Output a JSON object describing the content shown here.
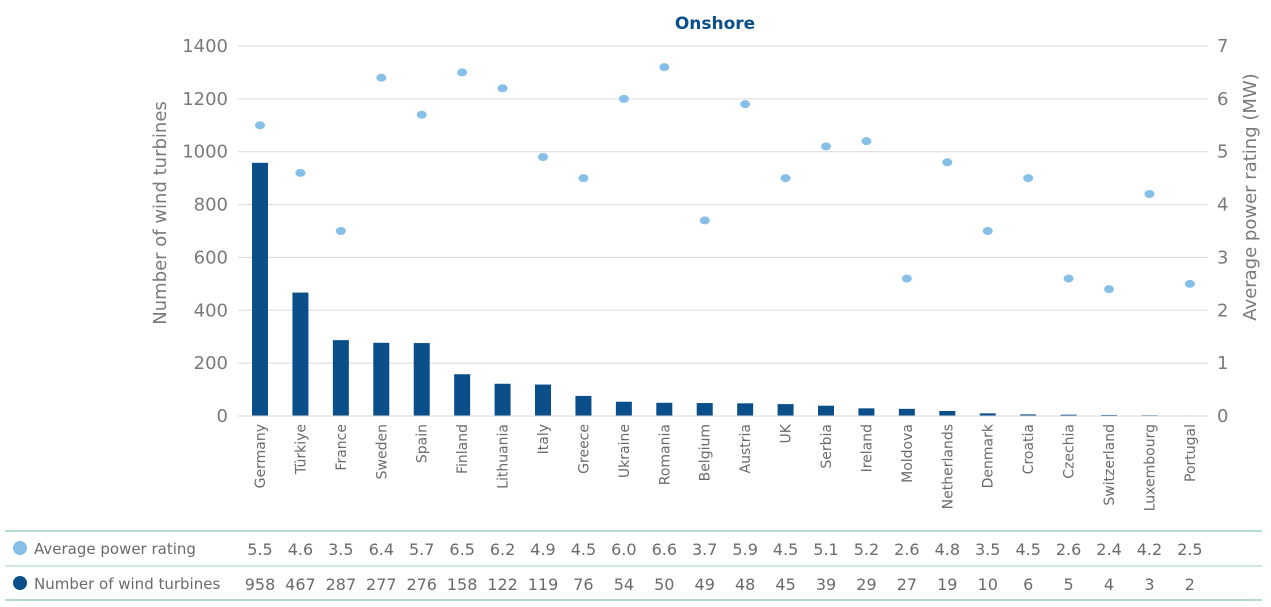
{
  "chart_data": {
    "type": "bar",
    "title": "Onshore",
    "categories": [
      "Germany",
      "Türkiye",
      "France",
      "Sweden",
      "Spain",
      "Finland",
      "Lithuania",
      "Italy",
      "Greece",
      "Ukraine",
      "Romania",
      "Belgium",
      "Austria",
      "UK",
      "Serbia",
      "Ireland",
      "Moldova",
      "Netherlands",
      "Denmark",
      "Croatia",
      "Czechia",
      "Switzerland",
      "Luxembourg",
      "Portugal"
    ],
    "series": [
      {
        "name": "Number of wind turbines",
        "type": "bar",
        "axis": "left",
        "values": [
          958,
          467,
          287,
          277,
          276,
          158,
          122,
          119,
          76,
          54,
          50,
          49,
          48,
          45,
          39,
          29,
          27,
          19,
          10,
          6,
          5,
          4,
          3,
          2
        ]
      },
      {
        "name": "Average power rating",
        "type": "scatter",
        "axis": "right",
        "values": [
          5.5,
          4.6,
          3.5,
          6.4,
          5.7,
          6.5,
          6.2,
          4.9,
          4.5,
          6.0,
          6.6,
          3.7,
          5.9,
          4.5,
          5.1,
          5.2,
          2.6,
          4.8,
          3.5,
          4.5,
          2.6,
          2.4,
          4.2,
          2.5
        ]
      }
    ],
    "ylabel": "Number of wind turbines",
    "ylim": [
      0,
      1400
    ],
    "yticks": [
      0,
      200,
      400,
      600,
      800,
      1000,
      1200,
      1400
    ],
    "y2label": "Average power rating (MW)",
    "y2lim": [
      0,
      7
    ],
    "y2ticks": [
      0,
      1,
      2,
      3,
      4,
      5,
      6,
      7
    ],
    "grid": true,
    "table": {
      "rows": [
        {
          "label": "Average power rating",
          "series": 1,
          "display": [
            "5.5",
            "4.6",
            "3.5",
            "6.4",
            "5.7",
            "6.5",
            "6.2",
            "4.9",
            "4.5",
            "6.0",
            "6.6",
            "3.7",
            "5.9",
            "4.5",
            "5.1",
            "5.2",
            "2.6",
            "4.8",
            "3.5",
            "4.5",
            "2.6",
            "2.4",
            "4.2",
            "2.5"
          ]
        },
        {
          "label": "Number of wind turbines",
          "series": 0,
          "display": [
            "958",
            "467",
            "287",
            "277",
            "276",
            "158",
            "122",
            "119",
            "76",
            "54",
            "50",
            "49",
            "48",
            "45",
            "39",
            "29",
            "27",
            "19",
            "10",
            "6",
            "5",
            "4",
            "3",
            "2"
          ]
        }
      ]
    }
  },
  "colors": {
    "bar": "#0b4f8a",
    "dot": "#86c0e8",
    "grid": "#d9d9d9",
    "axis_text": "#7a7a7a",
    "title": "#0b4f8a",
    "table_line": "#9ccfc0"
  }
}
